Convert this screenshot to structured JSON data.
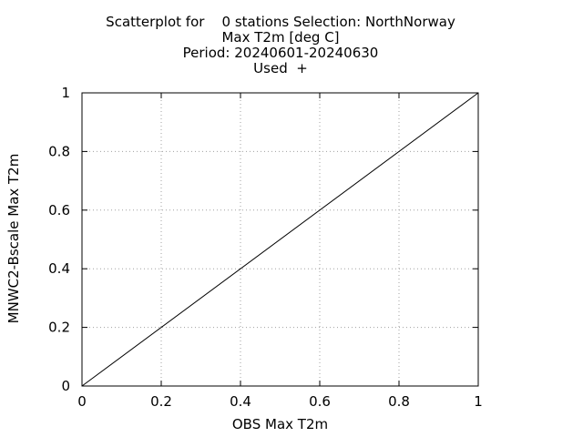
{
  "chart_data": {
    "type": "scatter",
    "title_lines": [
      "Scatterplot for    0 stations Selection: NorthNorway",
      "Max T2m [deg C]",
      "Period: 20240601-20240630",
      "Used  +"
    ],
    "xlabel": "OBS Max T2m",
    "ylabel": "MNWC2-Bscale Max T2m",
    "xlim": [
      0,
      1
    ],
    "ylim": [
      0,
      1
    ],
    "xticks": [
      "0",
      "0.2",
      "0.4",
      "0.6",
      "0.8",
      "1"
    ],
    "yticks": [
      "0",
      "0.2",
      "0.4",
      "0.6",
      "0.8",
      "1"
    ],
    "tick_values": [
      0,
      0.2,
      0.4,
      0.6,
      0.8,
      1
    ],
    "grid": true,
    "series": [
      {
        "values": []
      }
    ],
    "reference_line": {
      "x": [
        0,
        1
      ],
      "y": [
        0,
        1
      ]
    },
    "colors": {
      "axis": "#000000",
      "grid": "#a0a0a0",
      "line": "#000000"
    }
  }
}
